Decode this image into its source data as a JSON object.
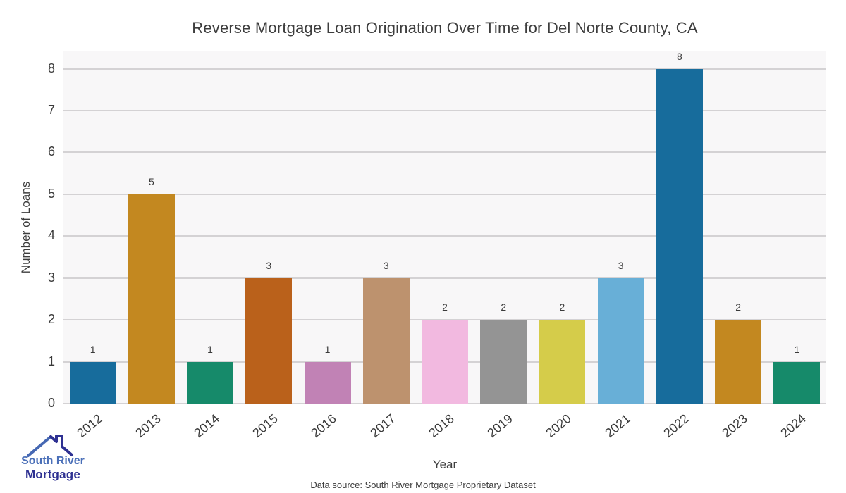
{
  "title": "Reverse Mortgage Loan Origination Over Time for Del Norte County, CA",
  "chart_data": {
    "type": "bar",
    "categories": [
      "2012",
      "2013",
      "2014",
      "2015",
      "2016",
      "2017",
      "2018",
      "2019",
      "2020",
      "2021",
      "2022",
      "2023",
      "2024"
    ],
    "values": [
      1,
      5,
      1,
      3,
      1,
      3,
      2,
      2,
      2,
      3,
      8,
      2,
      1
    ],
    "bar_colors": [
      "#176c9c",
      "#c38820",
      "#168a6a",
      "#ba611b",
      "#c182b5",
      "#bd926e",
      "#f2b9e0",
      "#949494",
      "#d5cc4a",
      "#68afd7",
      "#176c9c",
      "#c38820",
      "#168a6a"
    ],
    "title": "Reverse Mortgage Loan Origination Over Time for Del Norte County, CA",
    "xlabel": "Year",
    "ylabel": "Number of Loans",
    "ylim": [
      0,
      8
    ],
    "yticks": [
      0,
      1,
      2,
      3,
      4,
      5,
      6,
      7,
      8
    ],
    "grid": "horizontal-only",
    "legend": "none",
    "plot_background": "#f8f7f8",
    "gridline_color": "#d4d2d4",
    "value_labels_shown": true
  },
  "footer": {
    "source_note": "Data source: South River Mortgage Proprietary Dataset"
  },
  "logo": {
    "icon": "house-roof-icon",
    "line1": "South River",
    "line2": "Mortgage",
    "line1_color": "#4a6fb8",
    "line2_color": "#2e3192"
  }
}
